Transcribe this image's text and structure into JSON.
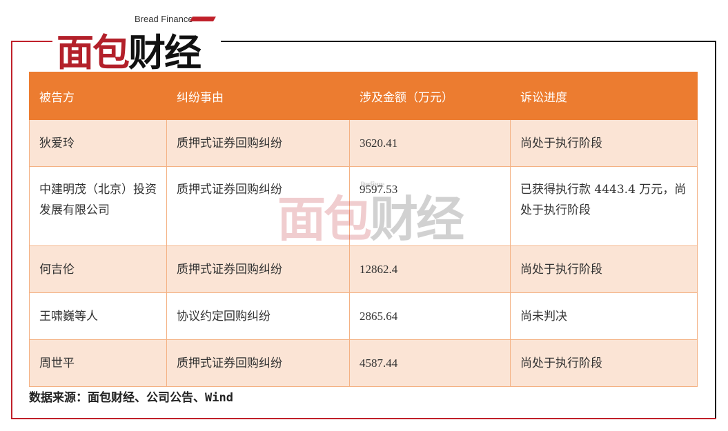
{
  "logo": {
    "en": "Bread Finance",
    "cn_red": "面包",
    "cn_black": "财经"
  },
  "table": {
    "headers": [
      "被告方",
      "纠纷事由",
      "涉及金额（万元）",
      "诉讼进度"
    ],
    "rows": [
      [
        "狄爱玲",
        "质押式证券回购纠纷",
        "3620.41",
        "尚处于执行阶段"
      ],
      [
        "中建明茂（北京）投资发展有限公司",
        "质押式证券回购纠纷",
        "9597.53",
        "已获得执行款 4443.4 万元，尚处于执行阶段"
      ],
      [
        "何吉伦",
        "质押式证券回购纠纷",
        "12862.4",
        "尚处于执行阶段"
      ],
      [
        "王啸巍等人",
        "协议约定回购纠纷",
        "2865.64",
        "尚未判决"
      ],
      [
        "周世平",
        "质押式证券回购纠纷",
        "4587.44",
        "尚处于执行阶段"
      ]
    ]
  },
  "source": "数据来源：面包财经、公司公告、Wind",
  "colors": {
    "header": "#ec7c30",
    "stripe": "#fbe4d5",
    "brand_red": "#c0202a"
  }
}
